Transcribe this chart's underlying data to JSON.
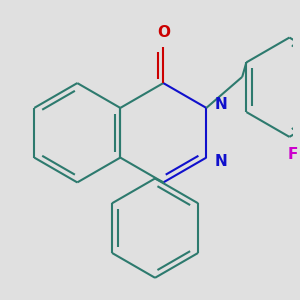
{
  "background_color": "#e0e0e0",
  "bond_color": "#2d7a6e",
  "nitrogen_color": "#1010cc",
  "oxygen_color": "#cc0000",
  "fluorine_color": "#cc00cc",
  "line_width": 1.5,
  "dbo": 0.08,
  "figsize": [
    3.0,
    3.0
  ],
  "dpi": 100,
  "xlim": [
    -1.8,
    2.4
  ],
  "ylim": [
    -2.2,
    2.0
  ],
  "ring_r": 0.72
}
